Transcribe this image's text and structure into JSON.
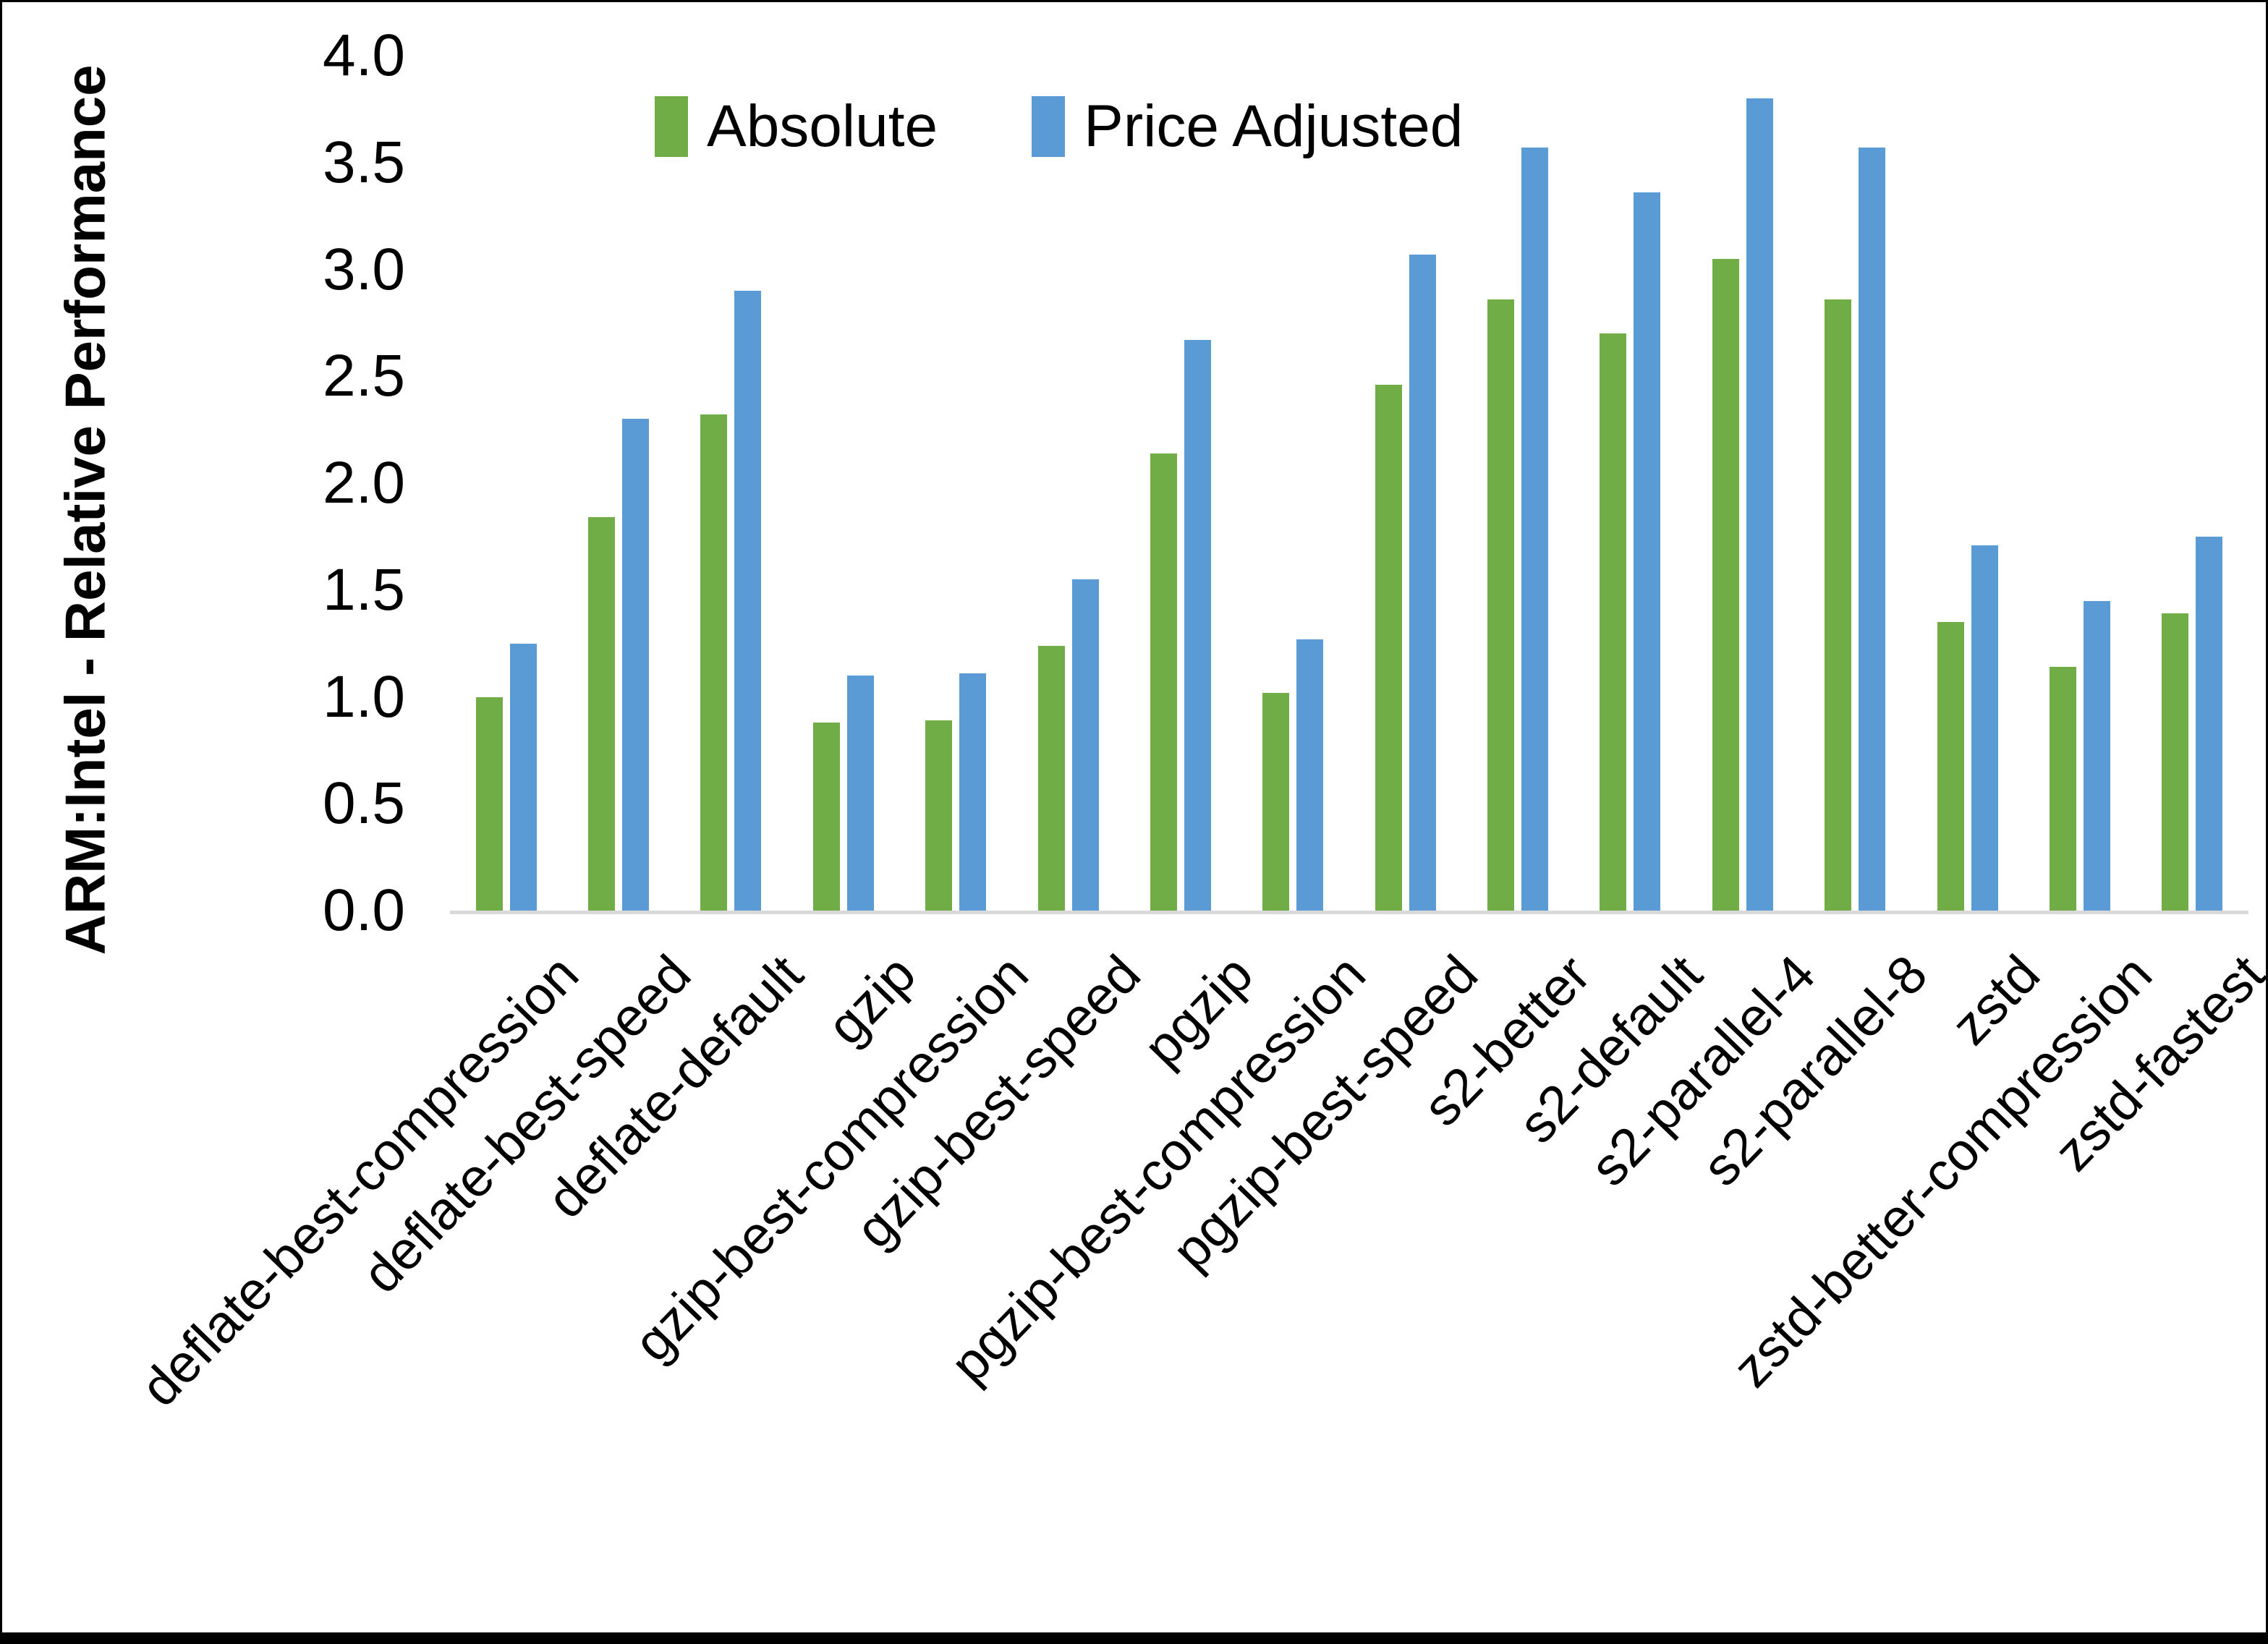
{
  "chart_data": {
    "type": "bar",
    "title": "",
    "ylabel": "ARM:Intel - Relative Performance",
    "xlabel": "",
    "ylim": [
      0.0,
      4.0
    ],
    "ytick_step": 0.5,
    "ytick_labels": [
      "4.0",
      "3.5",
      "3.0",
      "2.5",
      "2.0",
      "1.5",
      "1.0",
      "0.5",
      "0.0"
    ],
    "grid": false,
    "legend_position": "top-center",
    "categories": [
      "deflate-best-compression",
      "deflate-best-speed",
      "deflate-default",
      "gzip",
      "gzip-best-compression",
      "gzip-best-speed",
      "pgzip",
      "pgzip-best-compression",
      "pgzip-best-speed",
      "s2-better",
      "s2-default",
      "s2-parallel-4",
      "s2-parallel-8",
      "zstd",
      "zstd-better-compression",
      "zstd-fastest"
    ],
    "series": [
      {
        "name": "Absolute",
        "color": "#70AD47",
        "values": [
          1.0,
          1.84,
          2.32,
          0.88,
          0.89,
          1.24,
          2.14,
          1.02,
          2.46,
          2.86,
          2.7,
          3.05,
          2.86,
          1.35,
          1.14,
          1.39
        ]
      },
      {
        "name": "Price Adjusted",
        "color": "#5B9BD5",
        "values": [
          1.25,
          2.3,
          2.9,
          1.1,
          1.11,
          1.55,
          2.67,
          1.27,
          3.07,
          3.57,
          3.36,
          3.8,
          3.57,
          1.71,
          1.45,
          1.75
        ]
      }
    ]
  },
  "colors": {
    "background": "#FFFFFF",
    "axis_line": "#D9D9D9",
    "text": "#000000",
    "frame_border": "#000000"
  }
}
